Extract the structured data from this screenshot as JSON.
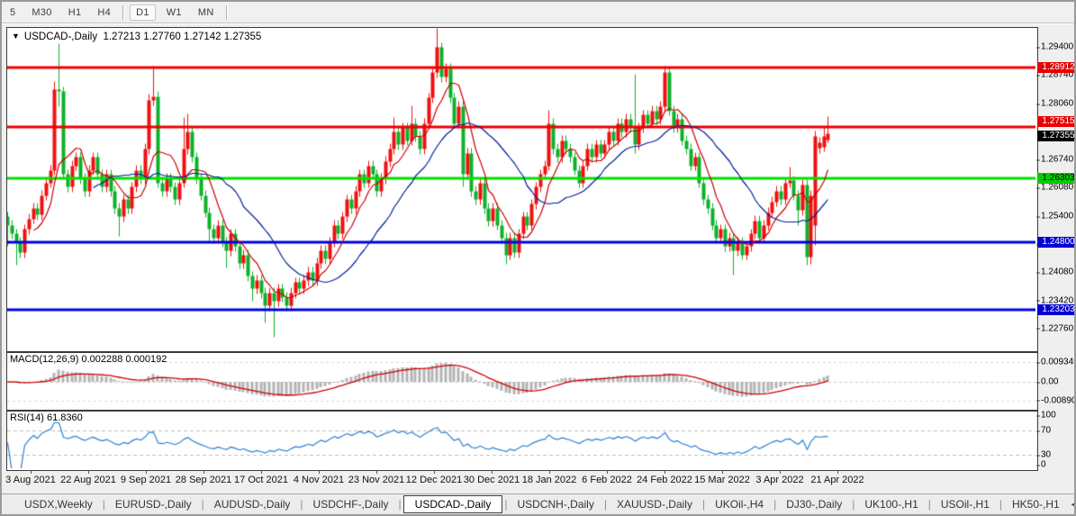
{
  "toolbar": {
    "timeframes": [
      "5",
      "M30",
      "H1",
      "H4",
      "D1",
      "W1",
      "MN"
    ],
    "active": "D1",
    "separators_after": [
      3,
      6
    ]
  },
  "chart_data": {
    "type": "candlestick",
    "symbol_label": "USDCAD-,Daily",
    "dropdown_icon": "▼",
    "ohlc_label": "1.27213 1.27760 1.27142 1.27355",
    "current_bar": {
      "open": "1.27213",
      "high": "1.27760",
      "low": "1.27142",
      "close": "1.27355"
    },
    "y_axis_ticks": [
      {
        "price": 1.294,
        "label": "1.29400"
      },
      {
        "price": 1.2874,
        "label": "1.28740"
      },
      {
        "price": 1.2806,
        "label": "1.28060"
      },
      {
        "price": 1.2674,
        "label": "1.26740"
      },
      {
        "price": 1.2608,
        "label": "1.26080"
      },
      {
        "price": 1.254,
        "label": "1.25400"
      },
      {
        "price": 1.2474,
        "label": "1.24740"
      },
      {
        "price": 1.2408,
        "label": "1.24080"
      },
      {
        "price": 1.2342,
        "label": "1.23420"
      },
      {
        "price": 1.2276,
        "label": "1.22760"
      }
    ],
    "levels": [
      {
        "price": 1.28912,
        "label": "1.28912",
        "kind": "red"
      },
      {
        "price": 1.27515,
        "label": "1.27515",
        "kind": "red"
      },
      {
        "price": 1.26303,
        "label": "1.26303",
        "kind": "green"
      },
      {
        "price": 1.248,
        "label": "1.24800",
        "kind": "blue"
      },
      {
        "price": 1.23203,
        "label": "1.23203",
        "kind": "blue"
      }
    ],
    "current_price": {
      "price": 1.27355,
      "label": "1.27355"
    },
    "x_axis_dates": [
      "3 Aug 2021",
      "22 Aug 2021",
      "9 Sep 2021",
      "28 Sep 2021",
      "17 Oct 2021",
      "4 Nov 2021",
      "23 Nov 2021",
      "12 Dec 2021",
      "30 Dec 2021",
      "18 Jan 2022",
      "6 Feb 2022",
      "24 Feb 2022",
      "15 Mar 2022",
      "3 Apr 2022",
      "21 Apr 2022"
    ],
    "candles": [
      [
        1.254,
        1.2552,
        1.247,
        1.252
      ],
      [
        1.252,
        1.2532,
        1.2488,
        1.25
      ],
      [
        1.25,
        1.2512,
        1.2425,
        1.248
      ],
      [
        1.248,
        1.2492,
        1.2443,
        1.2455
      ],
      [
        1.2455,
        1.2522,
        1.2443,
        1.251
      ],
      [
        1.251,
        1.2547,
        1.2498,
        1.2535
      ],
      [
        1.2535,
        1.2572,
        1.2523,
        1.256
      ],
      [
        1.256,
        1.2572,
        1.2533,
        1.2545
      ],
      [
        1.2545,
        1.2602,
        1.2533,
        1.259
      ],
      [
        1.259,
        1.2632,
        1.2578,
        1.262
      ],
      [
        1.262,
        1.2662,
        1.2608,
        1.265
      ],
      [
        1.265,
        1.286,
        1.2638,
        1.284
      ],
      [
        1.284,
        1.2948,
        1.28,
        1.2835
      ],
      [
        1.2835,
        1.2847,
        1.2628,
        1.264
      ],
      [
        1.264,
        1.2652,
        1.2598,
        1.261
      ],
      [
        1.261,
        1.2672,
        1.2598,
        1.266
      ],
      [
        1.266,
        1.2692,
        1.2648,
        1.268
      ],
      [
        1.268,
        1.2692,
        1.2618,
        1.263
      ],
      [
        1.263,
        1.2642,
        1.2588,
        1.26
      ],
      [
        1.26,
        1.2662,
        1.2588,
        1.265
      ],
      [
        1.265,
        1.2692,
        1.2638,
        1.268
      ],
      [
        1.268,
        1.2692,
        1.2628,
        1.264
      ],
      [
        1.264,
        1.2652,
        1.2598,
        1.261
      ],
      [
        1.261,
        1.2652,
        1.2598,
        1.264
      ],
      [
        1.264,
        1.2652,
        1.2588,
        1.26
      ],
      [
        1.26,
        1.2612,
        1.2548,
        1.256
      ],
      [
        1.256,
        1.2572,
        1.2495,
        1.254
      ],
      [
        1.254,
        1.2592,
        1.2528,
        1.258
      ],
      [
        1.258,
        1.2592,
        1.2548,
        1.256
      ],
      [
        1.256,
        1.2622,
        1.2548,
        1.261
      ],
      [
        1.261,
        1.2662,
        1.2598,
        1.265
      ],
      [
        1.265,
        1.2662,
        1.2618,
        1.263
      ],
      [
        1.263,
        1.2712,
        1.2618,
        1.27
      ],
      [
        1.27,
        1.283,
        1.2688,
        1.2815
      ],
      [
        1.2815,
        1.2895,
        1.2803,
        1.2823
      ],
      [
        1.2823,
        1.2835,
        1.2608,
        1.262
      ],
      [
        1.262,
        1.2632,
        1.2588,
        1.26
      ],
      [
        1.26,
        1.2642,
        1.2588,
        1.263
      ],
      [
        1.263,
        1.2642,
        1.2598,
        1.261
      ],
      [
        1.261,
        1.2622,
        1.2568,
        1.258
      ],
      [
        1.258,
        1.2632,
        1.2568,
        1.262
      ],
      [
        1.262,
        1.2775,
        1.2608,
        1.27
      ],
      [
        1.27,
        1.2782,
        1.2688,
        1.274
      ],
      [
        1.274,
        1.2752,
        1.2668,
        1.268
      ],
      [
        1.268,
        1.2692,
        1.2618,
        1.263
      ],
      [
        1.263,
        1.2642,
        1.2578,
        1.259
      ],
      [
        1.259,
        1.2602,
        1.2538,
        1.255
      ],
      [
        1.255,
        1.2562,
        1.248,
        1.251
      ],
      [
        1.251,
        1.2522,
        1.2478,
        1.249
      ],
      [
        1.249,
        1.2532,
        1.2478,
        1.252
      ],
      [
        1.252,
        1.2532,
        1.2468,
        1.248
      ],
      [
        1.248,
        1.2492,
        1.242,
        1.246
      ],
      [
        1.246,
        1.2512,
        1.2448,
        1.25
      ],
      [
        1.25,
        1.2512,
        1.2458,
        1.247
      ],
      [
        1.247,
        1.2482,
        1.2418,
        1.243
      ],
      [
        1.243,
        1.2462,
        1.2418,
        1.245
      ],
      [
        1.245,
        1.2462,
        1.2388,
        1.24
      ],
      [
        1.24,
        1.2412,
        1.234,
        1.237
      ],
      [
        1.237,
        1.2402,
        1.2358,
        1.239
      ],
      [
        1.239,
        1.2402,
        1.2348,
        1.236
      ],
      [
        1.236,
        1.2372,
        1.229,
        1.233
      ],
      [
        1.233,
        1.2372,
        1.2318,
        1.236
      ],
      [
        1.236,
        1.2372,
        1.2257,
        1.234
      ],
      [
        1.234,
        1.2382,
        1.2328,
        1.237
      ],
      [
        1.237,
        1.2382,
        1.2338,
        1.235
      ],
      [
        1.235,
        1.2362,
        1.2318,
        1.233
      ],
      [
        1.233,
        1.2372,
        1.2318,
        1.236
      ],
      [
        1.236,
        1.2397,
        1.2348,
        1.2385
      ],
      [
        1.2385,
        1.2397,
        1.2358,
        1.237
      ],
      [
        1.237,
        1.2402,
        1.2358,
        1.239
      ],
      [
        1.239,
        1.2422,
        1.2378,
        1.241
      ],
      [
        1.241,
        1.2422,
        1.2378,
        1.239
      ],
      [
        1.239,
        1.2442,
        1.2378,
        1.243
      ],
      [
        1.243,
        1.2472,
        1.2418,
        1.246
      ],
      [
        1.246,
        1.2472,
        1.2428,
        1.244
      ],
      [
        1.244,
        1.2492,
        1.2428,
        1.248
      ],
      [
        1.248,
        1.2532,
        1.2468,
        1.252
      ],
      [
        1.252,
        1.2532,
        1.2488,
        1.25
      ],
      [
        1.25,
        1.2552,
        1.2488,
        1.254
      ],
      [
        1.254,
        1.2592,
        1.2528,
        1.258
      ],
      [
        1.258,
        1.2592,
        1.2548,
        1.256
      ],
      [
        1.256,
        1.2612,
        1.2548,
        1.26
      ],
      [
        1.26,
        1.2652,
        1.2588,
        1.264
      ],
      [
        1.264,
        1.2652,
        1.2608,
        1.262
      ],
      [
        1.262,
        1.2672,
        1.2608,
        1.266
      ],
      [
        1.266,
        1.2672,
        1.2628,
        1.264
      ],
      [
        1.264,
        1.2652,
        1.2588,
        1.26
      ],
      [
        1.26,
        1.2642,
        1.2588,
        1.263
      ],
      [
        1.263,
        1.2682,
        1.2618,
        1.267
      ],
      [
        1.267,
        1.2712,
        1.2658,
        1.27
      ],
      [
        1.27,
        1.2775,
        1.2688,
        1.274
      ],
      [
        1.274,
        1.2752,
        1.2698,
        1.271
      ],
      [
        1.271,
        1.2762,
        1.2698,
        1.275
      ],
      [
        1.275,
        1.2762,
        1.2708,
        1.272
      ],
      [
        1.272,
        1.2802,
        1.2708,
        1.276
      ],
      [
        1.276,
        1.2772,
        1.2718,
        1.273
      ],
      [
        1.273,
        1.2742,
        1.2688,
        1.27
      ],
      [
        1.27,
        1.2772,
        1.2688,
        1.276
      ],
      [
        1.276,
        1.2832,
        1.2748,
        1.282
      ],
      [
        1.282,
        1.2892,
        1.2808,
        1.288
      ],
      [
        1.288,
        1.2985,
        1.2868,
        1.294
      ],
      [
        1.294,
        1.295,
        1.2858,
        1.287
      ],
      [
        1.287,
        1.2902,
        1.2858,
        1.289
      ],
      [
        1.289,
        1.2902,
        1.2808,
        1.282
      ],
      [
        1.282,
        1.2832,
        1.2748,
        1.276
      ],
      [
        1.276,
        1.2812,
        1.2748,
        1.28
      ],
      [
        1.28,
        1.2812,
        1.261,
        1.264
      ],
      [
        1.264,
        1.2702,
        1.2628,
        1.269
      ],
      [
        1.269,
        1.2702,
        1.2588,
        1.26
      ],
      [
        1.26,
        1.2612,
        1.2568,
        1.258
      ],
      [
        1.258,
        1.2632,
        1.2568,
        1.262
      ],
      [
        1.262,
        1.2632,
        1.2548,
        1.256
      ],
      [
        1.256,
        1.2572,
        1.2518,
        1.253
      ],
      [
        1.253,
        1.2572,
        1.2518,
        1.256
      ],
      [
        1.256,
        1.2572,
        1.2508,
        1.252
      ],
      [
        1.252,
        1.2532,
        1.2478,
        1.249
      ],
      [
        1.249,
        1.2502,
        1.2428,
        1.245
      ],
      [
        1.245,
        1.2502,
        1.2438,
        1.249
      ],
      [
        1.249,
        1.2502,
        1.2443,
        1.2455
      ],
      [
        1.2455,
        1.2512,
        1.2443,
        1.25
      ],
      [
        1.25,
        1.2552,
        1.2488,
        1.254
      ],
      [
        1.254,
        1.2552,
        1.2508,
        1.252
      ],
      [
        1.252,
        1.2582,
        1.2508,
        1.257
      ],
      [
        1.257,
        1.2622,
        1.2558,
        1.261
      ],
      [
        1.261,
        1.2652,
        1.2598,
        1.264
      ],
      [
        1.264,
        1.2672,
        1.2628,
        1.266
      ],
      [
        1.266,
        1.2792,
        1.2648,
        1.276
      ],
      [
        1.276,
        1.2772,
        1.2688,
        1.27
      ],
      [
        1.27,
        1.2712,
        1.2668,
        1.268
      ],
      [
        1.268,
        1.2732,
        1.2668,
        1.272
      ],
      [
        1.272,
        1.2732,
        1.2688,
        1.27
      ],
      [
        1.27,
        1.2712,
        1.2668,
        1.268
      ],
      [
        1.268,
        1.2692,
        1.2638,
        1.265
      ],
      [
        1.265,
        1.2662,
        1.2608,
        1.262
      ],
      [
        1.262,
        1.2672,
        1.2608,
        1.266
      ],
      [
        1.266,
        1.2712,
        1.2648,
        1.27
      ],
      [
        1.27,
        1.2712,
        1.2668,
        1.268
      ],
      [
        1.268,
        1.2722,
        1.2668,
        1.271
      ],
      [
        1.271,
        1.2722,
        1.2678,
        1.269
      ],
      [
        1.269,
        1.2722,
        1.2678,
        1.271
      ],
      [
        1.271,
        1.2752,
        1.2698,
        1.274
      ],
      [
        1.274,
        1.2752,
        1.2708,
        1.272
      ],
      [
        1.272,
        1.2772,
        1.2708,
        1.276
      ],
      [
        1.276,
        1.2772,
        1.2728,
        1.274
      ],
      [
        1.274,
        1.2782,
        1.2728,
        1.277
      ],
      [
        1.277,
        1.2782,
        1.2738,
        1.275
      ],
      [
        1.275,
        1.2877,
        1.269,
        1.271
      ],
      [
        1.271,
        1.2762,
        1.2698,
        1.275
      ],
      [
        1.275,
        1.2792,
        1.2738,
        1.278
      ],
      [
        1.278,
        1.2792,
        1.2748,
        1.276
      ],
      [
        1.276,
        1.2802,
        1.2748,
        1.279
      ],
      [
        1.279,
        1.2802,
        1.2758,
        1.277
      ],
      [
        1.277,
        1.2812,
        1.2758,
        1.28
      ],
      [
        1.28,
        1.2895,
        1.2788,
        1.288
      ],
      [
        1.288,
        1.2892,
        1.2778,
        1.279
      ],
      [
        1.279,
        1.2802,
        1.2738,
        1.275
      ],
      [
        1.275,
        1.2782,
        1.2738,
        1.277
      ],
      [
        1.277,
        1.2782,
        1.2708,
        1.272
      ],
      [
        1.272,
        1.2732,
        1.2688,
        1.27
      ],
      [
        1.27,
        1.2712,
        1.2648,
        1.266
      ],
      [
        1.266,
        1.2692,
        1.2648,
        1.268
      ],
      [
        1.268,
        1.2692,
        1.2608,
        1.262
      ],
      [
        1.262,
        1.2632,
        1.2568,
        1.258
      ],
      [
        1.258,
        1.2592,
        1.2548,
        1.256
      ],
      [
        1.256,
        1.2572,
        1.2508,
        1.252
      ],
      [
        1.252,
        1.2532,
        1.2478,
        1.249
      ],
      [
        1.249,
        1.2522,
        1.2478,
        1.251
      ],
      [
        1.251,
        1.2522,
        1.2458,
        1.247
      ],
      [
        1.247,
        1.2502,
        1.2458,
        1.249
      ],
      [
        1.249,
        1.2502,
        1.2403,
        1.246
      ],
      [
        1.246,
        1.2492,
        1.2448,
        1.248
      ],
      [
        1.248,
        1.2492,
        1.2438,
        1.245
      ],
      [
        1.245,
        1.2482,
        1.2438,
        1.247
      ],
      [
        1.247,
        1.2512,
        1.2458,
        1.25
      ],
      [
        1.25,
        1.2542,
        1.2488,
        1.253
      ],
      [
        1.253,
        1.2542,
        1.2478,
        1.249
      ],
      [
        1.249,
        1.2532,
        1.2478,
        1.252
      ],
      [
        1.252,
        1.2562,
        1.2508,
        1.255
      ],
      [
        1.255,
        1.2587,
        1.2538,
        1.2575
      ],
      [
        1.2575,
        1.2612,
        1.2563,
        1.26
      ],
      [
        1.26,
        1.2612,
        1.2568,
        1.258
      ],
      [
        1.258,
        1.2632,
        1.2568,
        1.262
      ],
      [
        1.262,
        1.2657,
        1.2608,
        1.2625
      ],
      [
        1.2625,
        1.2637,
        1.2578,
        1.259
      ],
      [
        1.259,
        1.2602,
        1.252,
        1.2555
      ],
      [
        1.2555,
        1.2627,
        1.2543,
        1.2615
      ],
      [
        1.2615,
        1.2627,
        1.2425,
        1.2445
      ],
      [
        1.2445,
        1.2602,
        1.2428,
        1.259
      ],
      [
        1.252,
        1.2742,
        1.2473,
        1.273
      ],
      [
        1.2702,
        1.2727,
        1.269,
        1.2715
      ],
      [
        1.2705,
        1.275,
        1.2693,
        1.273
      ],
      [
        1.27213,
        1.2776,
        1.27142,
        1.27355
      ]
    ],
    "macd": {
      "name_label": "MACD(12,26,9)",
      "value_main": "0.002288",
      "value_signal": "0.000192",
      "axis": [
        {
          "v": 0.009345,
          "label": "0.009345"
        },
        {
          "v": 0,
          "label": "0.00"
        },
        {
          "v": -0.008902,
          "label": "-0.008902"
        }
      ]
    },
    "rsi": {
      "name_label": "RSI(14)",
      "value": "61.8360",
      "axis": [
        {
          "v": 100,
          "label": "100"
        },
        {
          "v": 70,
          "label": "70"
        },
        {
          "v": 30,
          "label": "30"
        },
        {
          "v": 0,
          "label": "0"
        }
      ],
      "dashed_levels": [
        70,
        30
      ]
    }
  },
  "tabs": {
    "items": [
      "USDX,Weekly",
      "EURUSD-,Daily",
      "AUDUSD-,Daily",
      "USDCHF-,Daily",
      "USDCAD-,Daily",
      "USDCNH-,Daily",
      "XAUUSD-,Daily",
      "UKOil-,H4",
      "DJ30-,Daily",
      "UK100-,H1",
      "USOil-,H1",
      "HK50-,H1"
    ],
    "active": "USDCAD-,Daily",
    "scroll_left_icon": "◄",
    "scroll_right_icon": "►"
  },
  "colors": {
    "bull_candle": "#f01010",
    "bear_candle": "#0db229",
    "level_red": "#f00000",
    "level_green": "#00e000",
    "level_blue": "#0000e0",
    "ma_fast": "#cc0000",
    "ma_slow": "#001f9c",
    "macd_histogram": "#b4b4b4",
    "macd_signal": "#cc0000",
    "rsi_line": "#2f80d0",
    "dashed_level": "#bdbdbd"
  }
}
